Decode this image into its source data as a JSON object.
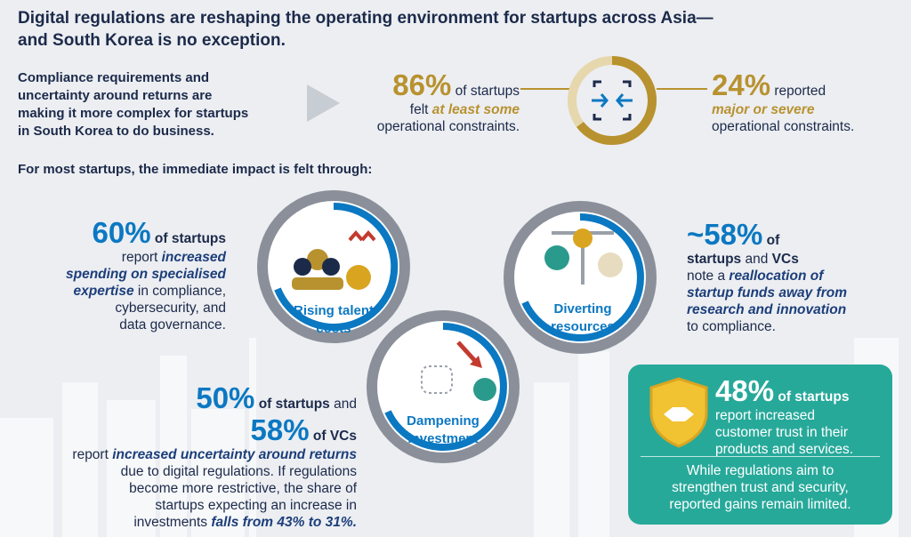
{
  "header": {
    "title_lines": [
      "Digital regulations are reshaping the operating environment for startups across Asia—",
      "and South Korea is no exception."
    ]
  },
  "intro": {
    "lines": [
      "Compliance requirements and",
      "uncertainty around returns are",
      "making it more complex for startups",
      "in South Korea to do business."
    ]
  },
  "at_least_some": {
    "lines": [
      [
        {
          "text": "86%",
          "highlight": true
        },
        {
          "text": "of startups"
        }
      ],
      [
        {
          "text": "felt"
        },
        {
          "text": "at least some",
          "emphasis": true
        }
      ],
      [
        {
          "text": "operational constraints."
        }
      ]
    ]
  },
  "major_or_severe": {
    "lines": [
      [
        {
          "text": "24%",
          "highlight": true
        },
        {
          "text": "reported"
        }
      ],
      [
        {
          "text": "major or severe",
          "emphasis": true
        }
      ],
      [
        {
          "text": "operational constraints."
        }
      ]
    ]
  },
  "subheading": "For most startups, the immediate impact is felt through:",
  "impacts": [
    {
      "label_lines": [
        "Rising talent",
        "costs"
      ]
    },
    {
      "label_lines": [
        "Diverting",
        "resources"
      ]
    },
    {
      "label_lines": [
        "Dampening",
        "investment"
      ]
    }
  ],
  "spending": {
    "lines": [
      [
        {
          "text": "60%",
          "highlight": true
        },
        {
          "text": "of startups",
          "strong": true
        }
      ],
      [
        {
          "text": "report"
        },
        {
          "text": "increased",
          "emphasis": true
        }
      ],
      [
        {
          "text": "spending on specialised",
          "emphasis": true
        }
      ],
      [
        {
          "text": "expertise",
          "emphasis": true
        },
        {
          "text": "in compliance,"
        }
      ],
      [
        {
          "text": "cybersecurity, and"
        }
      ],
      [
        {
          "text": "data governance."
        }
      ]
    ]
  },
  "reallocation": {
    "lines": [
      [
        {
          "text": "~58%",
          "highlight": true
        },
        {
          "text": "of",
          "strong": true
        }
      ],
      [
        {
          "text": "startups",
          "strong": true
        },
        {
          "text": "and"
        },
        {
          "text": "VCs",
          "strong": true
        }
      ],
      [
        {
          "text": "note a"
        },
        {
          "text": "reallocation of",
          "emphasis": true
        }
      ],
      [
        {
          "text": "startup funds away from",
          "emphasis": true
        }
      ],
      [
        {
          "text": "research and innovation",
          "emphasis": true
        }
      ],
      [
        {
          "text": "to compliance."
        }
      ]
    ]
  },
  "uncertainty": {
    "lines": [
      [
        {
          "text": "50%",
          "highlight": true
        },
        {
          "text": "of startups",
          "strong": true
        },
        {
          "text": "and"
        }
      ],
      [
        {
          "text": "58%",
          "highlight": true
        },
        {
          "text": "of VCs",
          "strong": true
        }
      ],
      [
        {
          "text": "report"
        },
        {
          "text": "increased uncertainty around returns",
          "emphasis": true
        }
      ],
      [
        {
          "text": "due to digital regulations. If regulations"
        }
      ],
      [
        {
          "text": "become more restrictive, the share of"
        }
      ],
      [
        {
          "text": "startups expecting an increase in"
        }
      ],
      [
        {
          "text": "investments"
        },
        {
          "text": "falls from 43% to 31%.",
          "emphasis": true
        }
      ]
    ]
  },
  "trust": {
    "lines": [
      [
        {
          "text": "48%",
          "highlight": true
        },
        {
          "text": "of startups",
          "strong": true
        }
      ],
      [
        {
          "text": "report increased"
        }
      ],
      [
        {
          "text": "customer trust in their"
        }
      ],
      [
        {
          "text": "products and services."
        }
      ]
    ],
    "note_lines": [
      "While regulations aim to",
      "strengthen trust and security,",
      "reported gains remain limited."
    ]
  }
}
